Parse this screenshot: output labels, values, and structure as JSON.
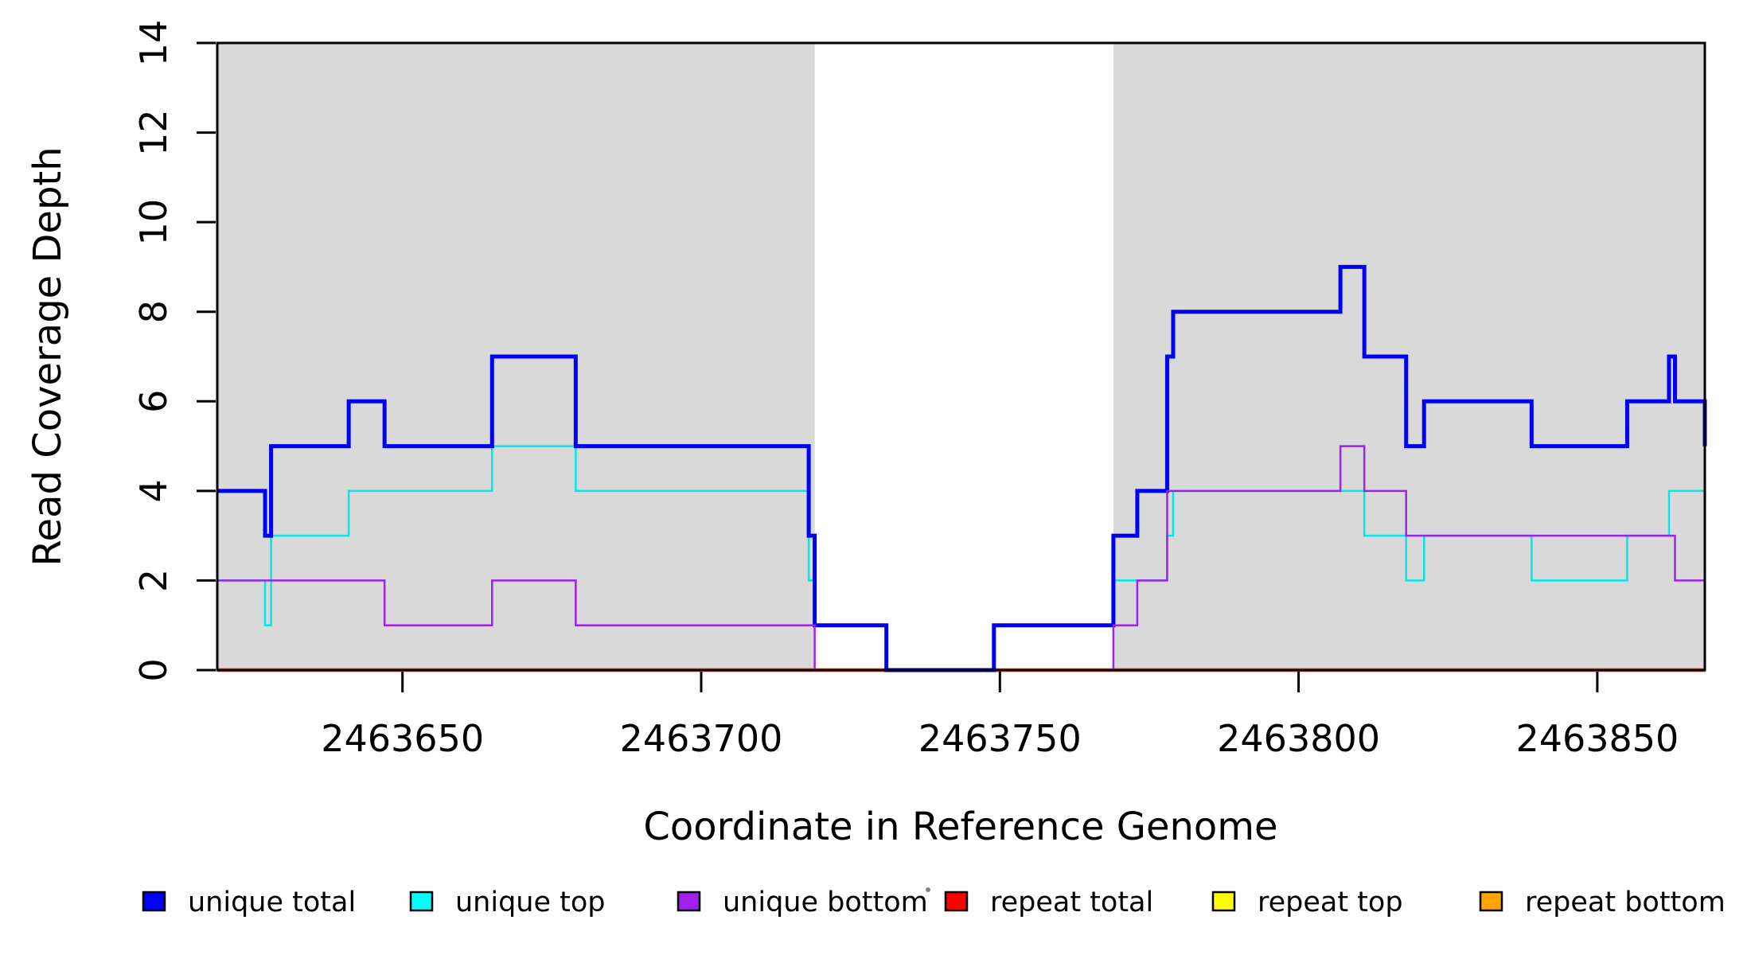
{
  "page": {
    "background": "#FFFFFF"
  },
  "chart_data": {
    "type": "line",
    "step_style": "post",
    "title": "",
    "xlabel": "Coordinate in Reference Genome",
    "ylabel": "Read Coverage Depth",
    "xlim": [
      2463619,
      2463868
    ],
    "ylim": [
      0,
      14
    ],
    "xticks": [
      2463650,
      2463700,
      2463750,
      2463800,
      2463850
    ],
    "yticks": [
      0,
      2,
      4,
      6,
      8,
      10,
      12,
      14
    ],
    "grid": false,
    "shade_color": "#D9D9D9",
    "shaded_regions": [
      {
        "name": "left-repeat-flank",
        "x_start": 2463619,
        "x_end": 2463719
      },
      {
        "name": "right-repeat-flank",
        "x_start": 2463769,
        "x_end": 2463868
      }
    ],
    "series": [
      {
        "name": "repeat total",
        "color": "#FF0000",
        "line_width": 4.5,
        "steps": [
          [
            2463619,
            0
          ]
        ]
      },
      {
        "name": "repeat top",
        "color": "#FFFF00",
        "line_width": 2.5,
        "steps": [
          [
            2463619,
            0
          ]
        ]
      },
      {
        "name": "repeat bottom",
        "color": "#FFA500",
        "line_width": 3.5,
        "steps": [
          [
            2463619,
            0
          ]
        ]
      },
      {
        "name": "unique top",
        "color": "#00E8EE",
        "line_width": 2.5,
        "steps": [
          [
            2463619,
            2
          ],
          [
            2463627,
            1
          ],
          [
            2463628,
            3
          ],
          [
            2463641,
            4
          ],
          [
            2463665,
            5
          ],
          [
            2463679,
            4
          ],
          [
            2463718,
            2
          ],
          [
            2463719,
            1
          ],
          [
            2463731,
            0
          ],
          [
            2463749,
            1
          ],
          [
            2463769,
            2
          ],
          [
            2463778,
            3
          ],
          [
            2463779,
            4
          ],
          [
            2463811,
            3
          ],
          [
            2463818,
            2
          ],
          [
            2463821,
            3
          ],
          [
            2463839,
            2
          ],
          [
            2463855,
            3
          ],
          [
            2463862,
            4
          ]
        ]
      },
      {
        "name": "unique total",
        "color": "#0000F2",
        "line_width": 5,
        "steps": [
          [
            2463619,
            4
          ],
          [
            2463627,
            3
          ],
          [
            2463628,
            5
          ],
          [
            2463641,
            6
          ],
          [
            2463647,
            5
          ],
          [
            2463665,
            7
          ],
          [
            2463679,
            5
          ],
          [
            2463718,
            3
          ],
          [
            2463719,
            1
          ],
          [
            2463731,
            0
          ],
          [
            2463749,
            1
          ],
          [
            2463769,
            3
          ],
          [
            2463773,
            4
          ],
          [
            2463778,
            7
          ],
          [
            2463779,
            8
          ],
          [
            2463807,
            9
          ],
          [
            2463811,
            7
          ],
          [
            2463818,
            5
          ],
          [
            2463821,
            6
          ],
          [
            2463839,
            5
          ],
          [
            2463855,
            6
          ],
          [
            2463862,
            7
          ],
          [
            2463863,
            6
          ],
          [
            2463868,
            5
          ]
        ]
      },
      {
        "name": "unique bottom",
        "color": "#A020F0",
        "line_width": 2.5,
        "steps": [
          [
            2463619,
            2
          ],
          [
            2463647,
            1
          ],
          [
            2463665,
            2
          ],
          [
            2463679,
            1
          ],
          [
            2463719,
            0
          ],
          [
            2463769,
            1
          ],
          [
            2463773,
            2
          ],
          [
            2463778,
            4
          ],
          [
            2463807,
            5
          ],
          [
            2463811,
            4
          ],
          [
            2463818,
            3
          ],
          [
            2463863,
            2
          ],
          [
            2463868,
            1
          ]
        ]
      }
    ],
    "legend": {
      "position": "bottom",
      "items": [
        {
          "label": "unique total",
          "color": "#0000FF"
        },
        {
          "label": "unique top",
          "color": "#00FFFF"
        },
        {
          "label": "unique bottom",
          "color": "#A020F0"
        },
        {
          "label": "repeat total",
          "color": "#FF0000"
        },
        {
          "label": "repeat top",
          "color": "#FFFF00"
        },
        {
          "label": "repeat bottom",
          "color": "#FFA500"
        }
      ],
      "stray_dot_color": "#808080"
    }
  }
}
